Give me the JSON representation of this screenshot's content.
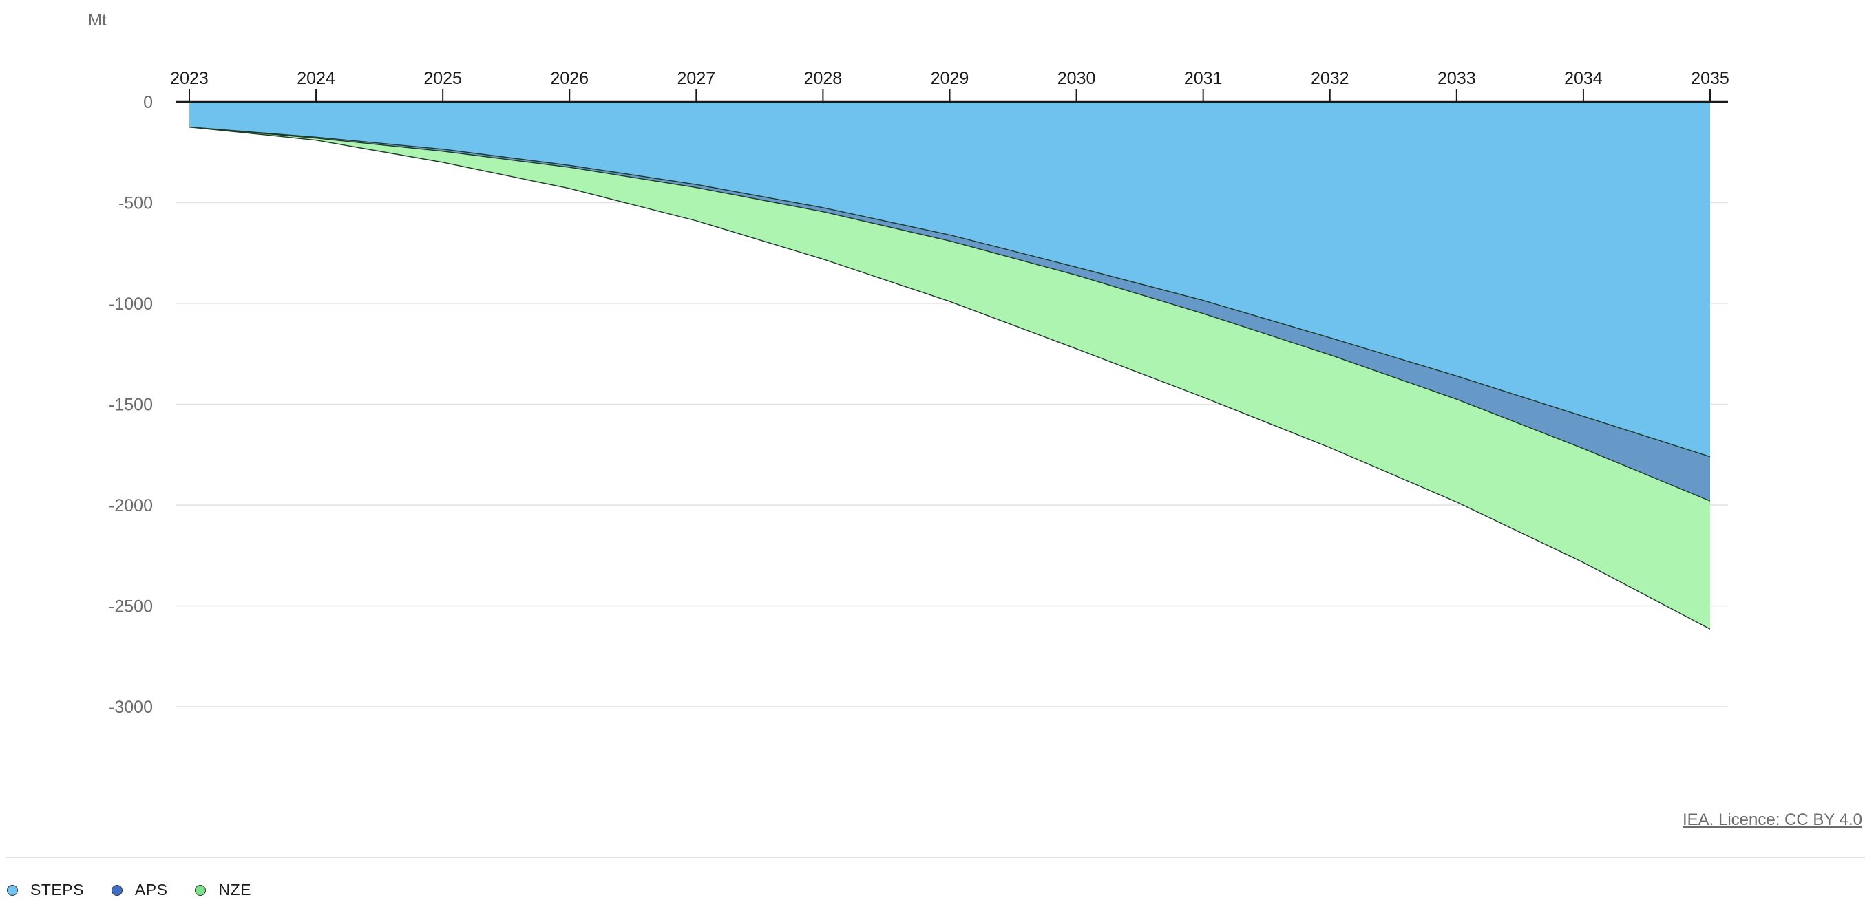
{
  "unit": "Mt",
  "credit": "IEA. Licence: CC BY 4.0",
  "colors": {
    "steps": "#70c2ee",
    "aps": "#6699c8",
    "nze": "#adf4b0",
    "axis": "#1a1a1a",
    "grid": "#e2e2e2",
    "tick_text": "#6b6b6b"
  },
  "legend": [
    {
      "label": "STEPS",
      "color": "#70c2ee"
    },
    {
      "label": "APS",
      "color": "#3f6fc4"
    },
    {
      "label": "NZE",
      "color": "#7ce28a"
    }
  ],
  "chart_data": {
    "type": "area",
    "title": "",
    "xlabel": "",
    "ylabel": "Mt",
    "x": [
      "2023",
      "2024",
      "2025",
      "2026",
      "2027",
      "2028",
      "2029",
      "2030",
      "2031",
      "2032",
      "2033",
      "2034",
      "2035"
    ],
    "ylim": [
      -3000,
      0
    ],
    "yticks": [
      0,
      -500,
      -1000,
      -1500,
      -2000,
      -2500,
      -3000
    ],
    "x_axis_position": "top",
    "grid": true,
    "legend_position": "bottom-left",
    "series": [
      {
        "name": "STEPS",
        "values": [
          -125,
          -175,
          -235,
          -315,
          -410,
          -525,
          -660,
          -820,
          -985,
          -1170,
          -1360,
          -1560,
          -1760
        ]
      },
      {
        "name": "APS",
        "values": [
          -125,
          -180,
          -245,
          -325,
          -425,
          -545,
          -690,
          -860,
          -1050,
          -1255,
          -1475,
          -1720,
          -1980
        ]
      },
      {
        "name": "NZE",
        "values": [
          -125,
          -190,
          -300,
          -430,
          -590,
          -780,
          -990,
          -1225,
          -1465,
          -1715,
          -1985,
          -2285,
          -2615
        ]
      }
    ]
  }
}
